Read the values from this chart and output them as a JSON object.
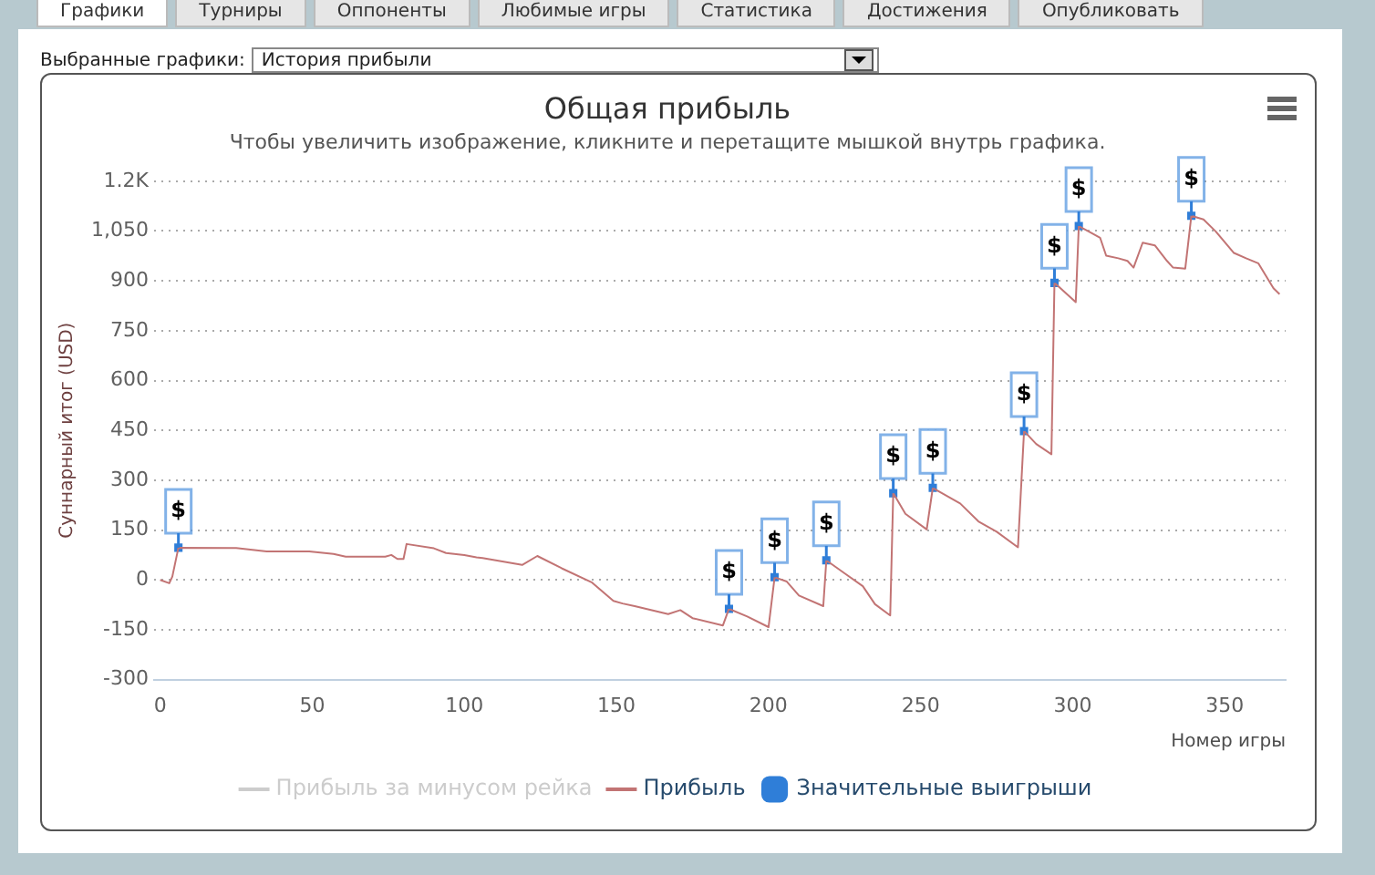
{
  "chart_data": {
    "type": "line",
    "title": "Общая прибыль",
    "subtitle": "Чтобы увеличить изображение, кликните и перетащите мышкой внутрь графика.",
    "xlabel": "Номер игры",
    "ylabel": "Суннарный итог (USD)",
    "annotations": [
      "Графики",
      "Турниры",
      "Оппоненты",
      "Любимые игры",
      "Статистика",
      "Достижения",
      "Опубликовать",
      "Выбранные графики:",
      "История прибыли"
    ],
    "xlim": [
      -2,
      370
    ],
    "xticks": [
      0,
      50,
      100,
      150,
      200,
      250,
      300,
      350
    ],
    "ylim": [
      -300,
      1200
    ],
    "yticks": [
      -300,
      -150,
      0,
      150,
      300,
      450,
      600,
      750,
      900,
      {
        "value": 1050,
        "label": "1,050"
      },
      {
        "value": 1200,
        "label": "1.2K"
      }
    ],
    "grid": "y",
    "legend": "bottom",
    "marker": "none",
    "series": [
      {
        "name": "Прибыль за минусом рейка",
        "color": "#cccccc"
      },
      {
        "name": "Прибыль",
        "color": "#c27474",
        "x": [
          0,
          3,
          4,
          6,
          25,
          35,
          49,
          57,
          61,
          74,
          76,
          78,
          80,
          81,
          90,
          94,
          100,
          104,
          106,
          119,
          124,
          132,
          142,
          149,
          152,
          156,
          167,
          171,
          175,
          185,
          187,
          193,
          200,
          202,
          206,
          210,
          218,
          219,
          225,
          231,
          235,
          240,
          241,
          245,
          252,
          254,
          263,
          269,
          275,
          282,
          284,
          288,
          293,
          294,
          301,
          302,
          309,
          311,
          315,
          318,
          320,
          323,
          327,
          331,
          333,
          337,
          339,
          343,
          347,
          353,
          357,
          361,
          366,
          368
        ],
        "values": [
          0,
          -10,
          10,
          97,
          96,
          86,
          86,
          78,
          70,
          70,
          75,
          63,
          63,
          108,
          95,
          81,
          75,
          68,
          66,
          45,
          72,
          35,
          -8,
          -63,
          -71,
          -79,
          -103,
          -91,
          -115,
          -137,
          -87,
          -110,
          -142,
          8,
          -5,
          -47,
          -79,
          59,
          20,
          -19,
          -73,
          -107,
          261,
          199,
          152,
          277,
          230,
          176,
          145,
          98,
          448,
          409,
          378,
          894,
          836,
          1065,
          1030,
          976,
          968,
          960,
          940,
          1015,
          1007,
          960,
          940,
          937,
          1096,
          1085,
          1049,
          984,
          968,
          953,
          878,
          860
        ]
      },
      {
        "name": "Значительные выигрыши",
        "type": "scatter",
        "marker": "square",
        "color": "#2f7ed8",
        "x": [
          6,
          187,
          202,
          219,
          241,
          254,
          284,
          294,
          302,
          339
        ],
        "values": [
          97,
          -87,
          8,
          59,
          261,
          277,
          448,
          894,
          1065,
          1096
        ],
        "value_labels": [
          "$",
          "$",
          "$",
          "$",
          "$",
          "$",
          "$",
          "$",
          "$",
          "$"
        ]
      }
    ]
  }
}
